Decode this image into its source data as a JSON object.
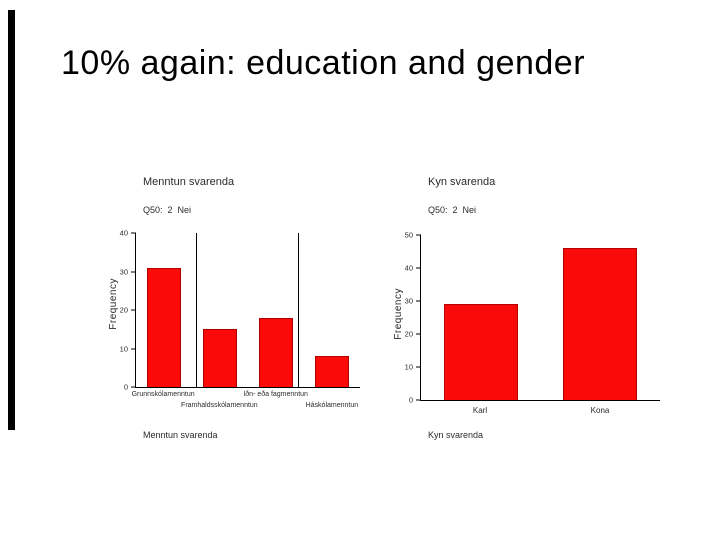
{
  "slide": {
    "title": "10% again: education and gender"
  },
  "chart_data": [
    {
      "type": "bar",
      "title": "Menntun svarenda",
      "subtitle": "Q50:  2  Nei",
      "xlabel": "Menntun svarenda",
      "ylabel": "Frequency",
      "categories": [
        "Grunnskólamenntun",
        "Framhaldsskólamenntun",
        "Iðn- eða fagmenntun",
        "Háskólamenntun"
      ],
      "values": [
        31,
        15,
        18,
        8
      ],
      "ylim": [
        0,
        40
      ],
      "ytick_step": 10,
      "bar_color": "#fb0a0a",
      "grid": false,
      "legend": "none",
      "stagger_category_labels": true
    },
    {
      "type": "bar",
      "title": "Kyn svarenda",
      "subtitle": "Q50:  2  Nei",
      "xlabel": "Kyn svarenda",
      "ylabel": "Frequency",
      "categories": [
        "Karl",
        "Kona"
      ],
      "values": [
        29,
        46
      ],
      "ylim": [
        0,
        50
      ],
      "ytick_step": 10,
      "bar_color": "#fb0a0a",
      "grid": false,
      "legend": "none",
      "stagger_category_labels": false
    }
  ]
}
